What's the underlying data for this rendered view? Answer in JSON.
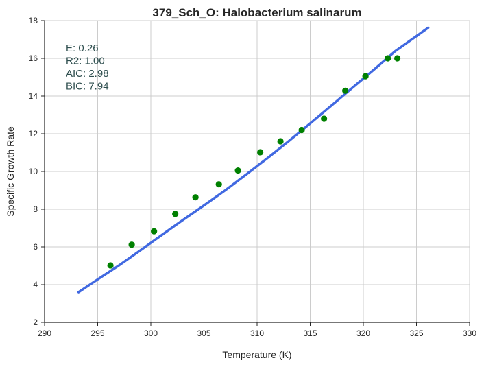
{
  "chart_data": {
    "type": "scatter",
    "title": "379_Sch_O: Halobacterium salinarum",
    "xlabel": "Temperature (K)",
    "ylabel": "Specific Growth Rate",
    "xlim": [
      290,
      330
    ],
    "ylim": [
      2,
      18
    ],
    "x_ticks": [
      290,
      295,
      300,
      305,
      310,
      315,
      320,
      325,
      330
    ],
    "y_ticks": [
      2,
      4,
      6,
      8,
      10,
      12,
      14,
      16,
      18
    ],
    "grid": true,
    "annotations": [
      "E:  0.26",
      "R2:  1.00",
      "AIC: 2.98",
      "BIC: 7.94"
    ],
    "series": [
      {
        "type": "line",
        "color": "#4169e1",
        "points": [
          [
            293.2,
            3.6
          ],
          [
            295,
            4.28
          ],
          [
            297,
            5.02
          ],
          [
            299,
            5.81
          ],
          [
            301,
            6.62
          ],
          [
            303,
            7.42
          ],
          [
            305,
            8.2
          ],
          [
            307,
            9.0
          ],
          [
            309,
            9.85
          ],
          [
            311,
            10.72
          ],
          [
            313,
            11.62
          ],
          [
            315,
            12.55
          ],
          [
            317,
            13.5
          ],
          [
            319,
            14.45
          ],
          [
            321,
            15.4
          ],
          [
            323,
            16.38
          ],
          [
            326.1,
            17.62
          ]
        ]
      },
      {
        "type": "scatter",
        "color": "#008000",
        "points": [
          [
            296.2,
            5.02
          ],
          [
            298.2,
            6.12
          ],
          [
            300.3,
            6.83
          ],
          [
            302.3,
            7.75
          ],
          [
            304.2,
            8.63
          ],
          [
            306.4,
            9.32
          ],
          [
            308.2,
            10.05
          ],
          [
            310.3,
            11.02
          ],
          [
            312.2,
            11.6
          ],
          [
            314.2,
            12.2
          ],
          [
            316.3,
            12.8
          ],
          [
            318.3,
            14.28
          ],
          [
            320.2,
            15.05
          ],
          [
            322.3,
            16.0
          ],
          [
            323.2,
            16.0
          ]
        ]
      }
    ]
  }
}
